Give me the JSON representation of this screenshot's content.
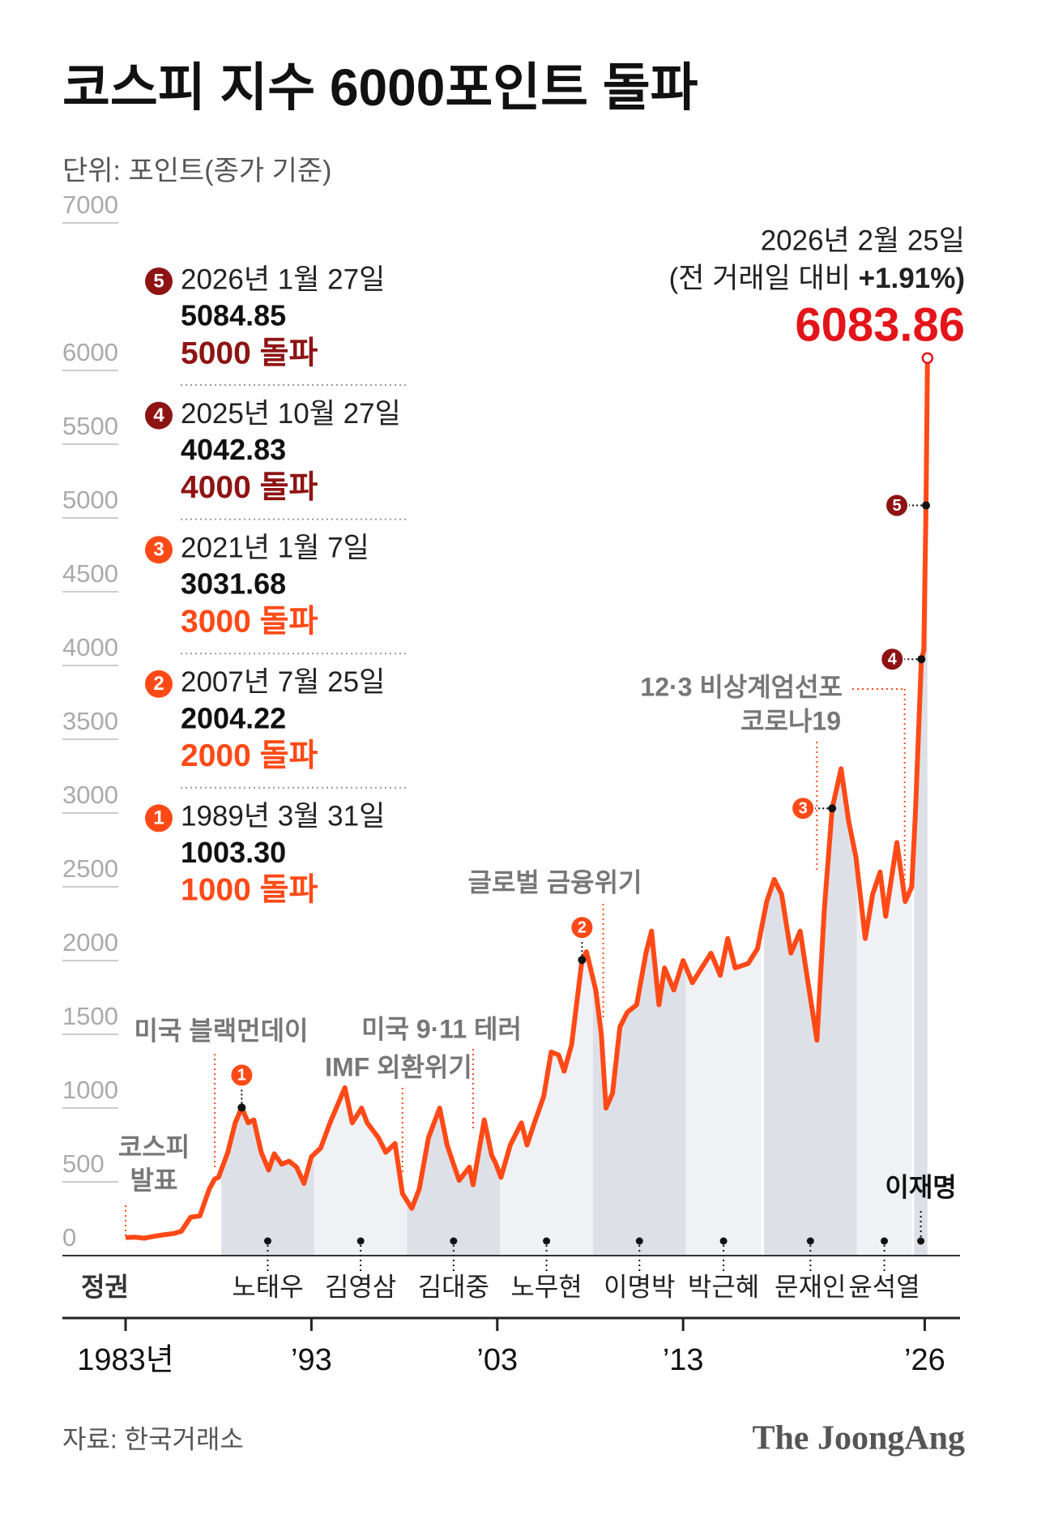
{
  "title": "코스피 지수 6000포인트 돌파",
  "subtitle": "단위: 포인트(종가 기준)",
  "source": "자료: 한국거래소",
  "brand": "The JoongAng",
  "chart_data": {
    "type": "line",
    "x": [
      1983.0,
      1983.5,
      1984.0,
      1984.5,
      1985.0,
      1985.6,
      1986.0,
      1986.5,
      1987.0,
      1987.5,
      1987.8,
      1988.0,
      1988.5,
      1988.9,
      1989.25,
      1989.6,
      1989.9,
      1990.3,
      1990.7,
      1991.0,
      1991.4,
      1991.8,
      1992.2,
      1992.6,
      1993.0,
      1993.5,
      1994.0,
      1994.8,
      1995.2,
      1995.7,
      1996.0,
      1996.6,
      1997.0,
      1997.5,
      1997.9,
      1998.4,
      1998.8,
      1999.3,
      1999.9,
      2000.3,
      2000.7,
      2000.95,
      2001.5,
      2001.7,
      2002.3,
      2002.7,
      2002.9,
      2003.2,
      2003.7,
      2004.3,
      2004.6,
      2005.0,
      2005.5,
      2005.9,
      2006.3,
      2006.6,
      2007.0,
      2007.56,
      2007.8,
      2008.3,
      2008.6,
      2008.85,
      2009.2,
      2009.6,
      2010.0,
      2010.5,
      2011.0,
      2011.3,
      2011.7,
      2012.0,
      2012.5,
      2013.0,
      2013.5,
      2014.0,
      2014.5,
      2015.0,
      2015.4,
      2015.8,
      2016.5,
      2017.0,
      2017.5,
      2017.9,
      2018.3,
      2018.8,
      2019.3,
      2019.6,
      2020.2,
      2020.6,
      2021.02,
      2021.5,
      2021.9,
      2022.3,
      2022.8,
      2023.2,
      2023.6,
      2023.9,
      2024.5,
      2024.95,
      2025.3,
      2025.5,
      2025.82,
      2025.95,
      2026.07,
      2026.15
    ],
    "series": [
      {
        "color": "#ff4a17",
        "values": [
          122,
          125,
          118,
          130,
          140,
          150,
          165,
          260,
          270,
          450,
          520,
          530,
          700,
          900,
          1003,
          900,
          920,
          700,
          580,
          690,
          620,
          640,
          600,
          490,
          670,
          730,
          900,
          1138,
          900,
          1000,
          900,
          800,
          700,
          760,
          420,
          320,
          450,
          800,
          1000,
          750,
          600,
          510,
          600,
          480,
          920,
          680,
          630,
          530,
          750,
          900,
          750,
          900,
          1080,
          1380,
          1360,
          1250,
          1430,
          2004,
          2060,
          1800,
          1500,
          1000,
          1100,
          1550,
          1650,
          1700,
          2050,
          2200,
          1700,
          1950,
          1800,
          2000,
          1850,
          1950,
          2050,
          1900,
          2150,
          1950,
          1980,
          2080,
          2400,
          2550,
          2450,
          2050,
          2200,
          1950,
          1460,
          2350,
          3031,
          3300,
          2950,
          2700,
          2150,
          2450,
          2600,
          2300,
          2800,
          2400,
          2500,
          3000,
          4042,
          4100,
          5085,
          6083.86
        ]
      }
    ],
    "xlim": [
      1979.6,
      2027.9
    ],
    "xticks": [
      {
        "value": 1983,
        "label": "1983년"
      },
      {
        "value": 1993,
        "label": "’93"
      },
      {
        "value": 2003,
        "label": "’03"
      },
      {
        "value": 2013,
        "label": "’13"
      },
      {
        "value": 2026,
        "label": "’26"
      }
    ],
    "ylim": [
      0,
      7000
    ],
    "yticks": [
      0,
      500,
      1000,
      1500,
      2000,
      2500,
      3000,
      3500,
      4000,
      4500,
      5000,
      5500,
      6000,
      7000
    ],
    "latest": {
      "date": "2026년 2월 25일",
      "comparison": "(전 거래일 대비",
      "change": "+1.91%)",
      "color": "#e3151a"
    },
    "milestones": [
      {
        "no": "1",
        "date": "1989년 3월 31일",
        "x": 1989.25,
        "value": 1003.3,
        "value_label": "1003.30",
        "headline": "1000 돌파",
        "color": "#ff4a17"
      },
      {
        "no": "2",
        "date": "2007년 7월 25일",
        "x": 2007.56,
        "value": 2004.22,
        "headline": "2000 돌파",
        "color": "#ff4a17"
      },
      {
        "no": "3",
        "date": "2021년 1월 7일",
        "x": 2021.02,
        "value": 3031.68,
        "headline": "3000 돌파",
        "color": "#ff4a17"
      },
      {
        "no": "4",
        "date": "2025년 10월 27일",
        "x": 2025.82,
        "value": 4042.83,
        "headline": "4000 돌파",
        "color": "#8e1414"
      },
      {
        "no": "5",
        "date": "2026년 1월 27일",
        "x": 2026.07,
        "value": 5084.85,
        "headline": "5000 돌파",
        "color": "#8e1414"
      }
    ],
    "events": [
      {
        "label": "코스피 발표",
        "x": 1983.0
      },
      {
        "label": "미국 블랙먼데이",
        "x": 1987.8
      },
      {
        "label": "IMF 외환위기",
        "x": 1997.9
      },
      {
        "label": "미국 9·11 테러",
        "x": 2001.7
      },
      {
        "label": "글로벌 금융위기",
        "x": 2008.7
      },
      {
        "label": "코로나19",
        "x": 2020.2
      },
      {
        "label": "12·3 비상계엄선포",
        "x": 2024.92
      }
    ],
    "administrations": {
      "label": "정권",
      "items": [
        {
          "name": "노태우",
          "start": 1988.15,
          "end": 1993.15
        },
        {
          "name": "김영삼",
          "start": 1993.15,
          "end": 1998.15
        },
        {
          "name": "김대중",
          "start": 1998.15,
          "end": 2003.15
        },
        {
          "name": "노무현",
          "start": 2003.15,
          "end": 2008.15
        },
        {
          "name": "이명박",
          "start": 2008.15,
          "end": 2013.15
        },
        {
          "name": "박근혜",
          "start": 2013.15,
          "end": 2017.2
        },
        {
          "name": "문재인",
          "start": 2017.35,
          "end": 2022.35
        },
        {
          "name": "윤석열",
          "start": 2022.35,
          "end": 2025.3
        },
        {
          "name": "이재명",
          "start": 2025.43,
          "end": 2026.15
        }
      ]
    }
  }
}
